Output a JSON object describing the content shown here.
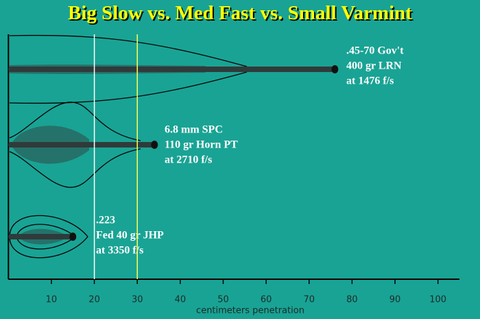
{
  "chart_data": {
    "type": "penetration-profile",
    "title": "Big Slow vs. Med Fast vs. Small Varmint",
    "xlabel": "centimeters penetration",
    "xlim": [
      0,
      105
    ],
    "xticks": [
      10,
      20,
      30,
      40,
      50,
      60,
      70,
      80,
      90,
      100
    ],
    "reference_lines": [
      {
        "value": 20,
        "color": "#ffffff"
      },
      {
        "value": 30,
        "color": "#ffff55"
      }
    ],
    "series": [
      {
        "label": [
          ".45-70 Gov't",
          "400 gr LRN",
          "at 1476 f/s"
        ],
        "penetration": 76,
        "color": "#2f3b3a"
      },
      {
        "label": [
          "6.8 mm SPC",
          "110 gr Horn PT",
          "at 2710 f/s"
        ],
        "penetration": 34,
        "color": "#2f3b3a"
      },
      {
        "label": [
          ".223",
          "Fed 40 gr JHP",
          "at 3350 f/s"
        ],
        "penetration": 15,
        "color": "#2f3b3a"
      }
    ]
  }
}
